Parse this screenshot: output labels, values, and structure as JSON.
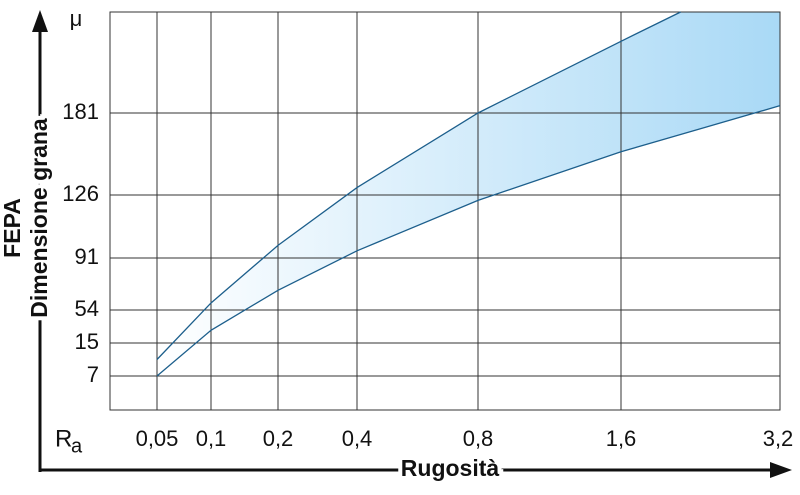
{
  "chart_data": {
    "type": "band",
    "y_unit": "μ",
    "y_label_line1": "FEPA",
    "y_label_line2": "Dimensione grana",
    "x_symbol": "R",
    "x_symbol_sub": "a",
    "x_label": "Rugosità",
    "xticks": [
      {
        "value": 0.05,
        "label": "0,05"
      },
      {
        "value": 0.1,
        "label": "0,1"
      },
      {
        "value": 0.2,
        "label": "0,2"
      },
      {
        "value": 0.4,
        "label": "0,4"
      },
      {
        "value": 0.8,
        "label": "0,8"
      },
      {
        "value": 1.6,
        "label": "1,6"
      },
      {
        "value": 3.2,
        "label": "3,2"
      }
    ],
    "ylim": [
      0,
      250
    ],
    "yticks": [
      7,
      15,
      54,
      91,
      126,
      181
    ],
    "grid": true,
    "line_color": "#1d5f8c",
    "fill_colors": [
      "#ffffff",
      "#a9d9f6"
    ],
    "series": [
      {
        "x": [
          0.05,
          0.1,
          0.2,
          0.4,
          0.8,
          1.6,
          2.2
        ],
        "values": [
          11,
          59,
          98,
          131,
          181,
          230,
          250
        ]
      },
      {
        "x": [
          0.05,
          0.1,
          0.2,
          0.4,
          0.8,
          1.6,
          3.2
        ],
        "values": [
          7,
          30,
          68,
          95,
          123,
          155,
          186
        ]
      }
    ]
  }
}
